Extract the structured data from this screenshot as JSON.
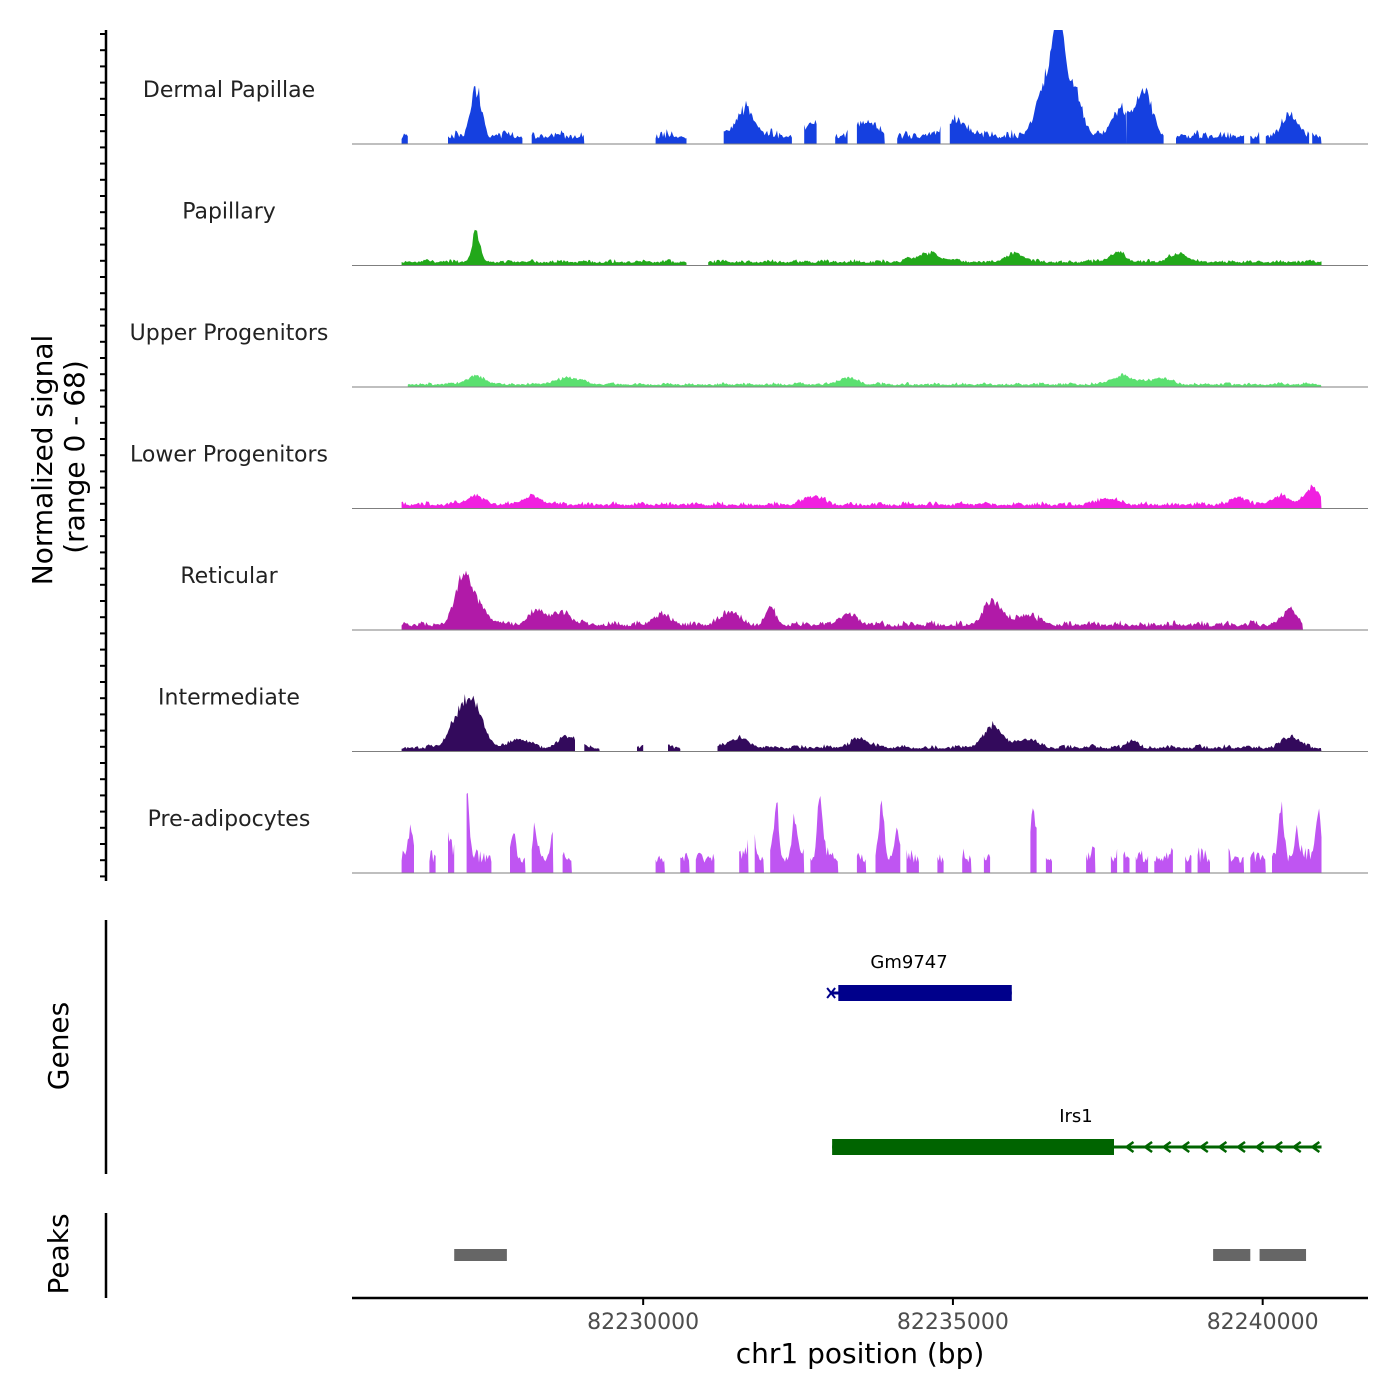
{
  "chart_data": {
    "type": "area",
    "title": "",
    "ylabel_line1": "Normalized signal",
    "ylabel_line2": "(range 0 - 68)",
    "xlabel": "chr1 position (bp)",
    "x_range": [
      82225300,
      82241700
    ],
    "y_range": [
      0,
      68
    ],
    "x_ticks": [
      82230000,
      82235000,
      82240000
    ],
    "x_tick_labels": [
      "82230000",
      "82235000",
      "82240000"
    ],
    "tracks": [
      {
        "name": "Dermal Papillae",
        "color": "#1540E0",
        "peaks": [
          [
            82227300,
            28,
            80
          ],
          [
            82236700,
            68,
            90
          ],
          [
            82236500,
            30,
            150
          ],
          [
            82236950,
            30,
            120
          ],
          [
            82231650,
            16,
            150
          ],
          [
            82237700,
            14,
            150
          ],
          [
            82238000,
            16,
            120
          ],
          [
            82238150,
            16,
            100
          ],
          [
            82240450,
            13,
            120
          ],
          [
            82235050,
            9,
            200
          ],
          [
            82232750,
            8,
            150
          ],
          [
            82233600,
            9,
            150
          ]
        ],
        "base": 3,
        "noise": 6,
        "segments": [
          [
            82226100,
            82226200
          ],
          [
            82226850,
            82228050
          ],
          [
            82228200,
            82229050
          ],
          [
            82230200,
            82230700
          ],
          [
            82231300,
            82232400
          ],
          [
            82232600,
            82232800
          ],
          [
            82233100,
            82233300
          ],
          [
            82233450,
            82233900
          ],
          [
            82234100,
            82234800
          ],
          [
            82234950,
            82237800
          ],
          [
            82237800,
            82238400
          ],
          [
            82238600,
            82239700
          ],
          [
            82239800,
            82239950
          ],
          [
            82240050,
            82240750
          ],
          [
            82240800,
            82240950
          ]
        ]
      },
      {
        "name": "Papillary",
        "color": "#22A81A",
        "peaks": [
          [
            82227300,
            18,
            60
          ],
          [
            82236000,
            5,
            150
          ],
          [
            82237650,
            6,
            120
          ],
          [
            82234600,
            5,
            200
          ],
          [
            82238650,
            5,
            150
          ]
        ],
        "base": 1.5,
        "noise": 2.5,
        "segments": [
          [
            82226100,
            82230700
          ],
          [
            82231050,
            82240950
          ]
        ]
      },
      {
        "name": "Upper Progenitors",
        "color": "#5BE070",
        "peaks": [
          [
            82227300,
            5,
            150
          ],
          [
            82228800,
            4,
            200
          ],
          [
            82233300,
            4,
            150
          ],
          [
            82237750,
            5,
            200
          ],
          [
            82238350,
            4,
            150
          ]
        ],
        "base": 1,
        "noise": 2,
        "segments": [
          [
            82226200,
            82240950
          ]
        ]
      },
      {
        "name": "Lower Progenitors",
        "color": "#F020E0",
        "peaks": [
          [
            82240800,
            10,
            120
          ],
          [
            82227300,
            5,
            150
          ],
          [
            82228200,
            5,
            150
          ],
          [
            82232750,
            5,
            150
          ],
          [
            82237500,
            4,
            150
          ],
          [
            82239600,
            5,
            120
          ],
          [
            82240300,
            5,
            150
          ]
        ],
        "base": 1.5,
        "noise": 3,
        "segments": [
          [
            82226100,
            82240950
          ]
        ]
      },
      {
        "name": "Reticular",
        "color": "#B11AA8",
        "peaks": [
          [
            82227100,
            22,
            120
          ],
          [
            82227250,
            12,
            200
          ],
          [
            82235650,
            14,
            150
          ],
          [
            82228300,
            8,
            150
          ],
          [
            82228700,
            7,
            150
          ],
          [
            82231400,
            8,
            150
          ],
          [
            82232050,
            10,
            80
          ],
          [
            82236200,
            6,
            150
          ],
          [
            82240450,
            10,
            100
          ],
          [
            82233300,
            6,
            150
          ],
          [
            82230300,
            6,
            150
          ]
        ],
        "base": 2,
        "noise": 4,
        "segments": [
          [
            82226100,
            82240650
          ]
        ]
      },
      {
        "name": "Intermediate",
        "color": "#330A5C",
        "peaks": [
          [
            82227100,
            22,
            180
          ],
          [
            82227300,
            14,
            150
          ],
          [
            82235650,
            13,
            150
          ],
          [
            82228800,
            7,
            150
          ],
          [
            82231550,
            6,
            150
          ],
          [
            82236200,
            5,
            150
          ],
          [
            82237900,
            5,
            80
          ],
          [
            82240450,
            7,
            120
          ],
          [
            82233500,
            5,
            150
          ],
          [
            82228000,
            5,
            150
          ]
        ],
        "base": 1.5,
        "noise": 3,
        "segments": [
          [
            82226100,
            82228900
          ],
          [
            82229050,
            82229300
          ],
          [
            82229900,
            82230000
          ],
          [
            82230400,
            82230600
          ],
          [
            82231200,
            82240950
          ]
        ]
      },
      {
        "name": "Pre-adipocytes",
        "color": "#BF55F2",
        "peaks": [
          [
            82226250,
            18,
            40
          ],
          [
            82226850,
            12,
            40
          ],
          [
            82227050,
            20,
            50
          ],
          [
            82227150,
            38,
            40
          ],
          [
            82227900,
            15,
            40
          ],
          [
            82228250,
            18,
            40
          ],
          [
            82228550,
            18,
            40
          ],
          [
            82231750,
            28,
            40
          ],
          [
            82232150,
            30,
            40
          ],
          [
            82232450,
            25,
            40
          ],
          [
            82232850,
            40,
            40
          ],
          [
            82233850,
            28,
            40
          ],
          [
            82234100,
            18,
            40
          ],
          [
            82236300,
            30,
            40
          ],
          [
            82237350,
            20,
            40
          ],
          [
            82240300,
            30,
            40
          ],
          [
            82240550,
            18,
            40
          ],
          [
            82240900,
            30,
            40
          ]
        ],
        "base": 6,
        "noise": 10,
        "segments": [
          [
            82226100,
            82226300
          ],
          [
            82226550,
            82226650
          ],
          [
            82226850,
            82226950
          ],
          [
            82227150,
            82227550
          ],
          [
            82227850,
            82228100
          ],
          [
            82228200,
            82228550
          ],
          [
            82228700,
            82228850
          ],
          [
            82230200,
            82230350
          ],
          [
            82230600,
            82230750
          ],
          [
            82230850,
            82231150
          ],
          [
            82231550,
            82231700
          ],
          [
            82231800,
            82231950
          ],
          [
            82232050,
            82232600
          ],
          [
            82232700,
            82233150
          ],
          [
            82233450,
            82233600
          ],
          [
            82233750,
            82234150
          ],
          [
            82234250,
            82234450
          ],
          [
            82234750,
            82234850
          ],
          [
            82235150,
            82235300
          ],
          [
            82235500,
            82235600
          ],
          [
            82236250,
            82236350
          ],
          [
            82236500,
            82236600
          ],
          [
            82237150,
            82237300
          ],
          [
            82237550,
            82237650
          ],
          [
            82237750,
            82237850
          ],
          [
            82237950,
            82238150
          ],
          [
            82238250,
            82238550
          ],
          [
            82238750,
            82238850
          ],
          [
            82238950,
            82239150
          ],
          [
            82239450,
            82239700
          ],
          [
            82239800,
            82240050
          ],
          [
            82240150,
            82240950
          ]
        ]
      }
    ],
    "genes": [
      {
        "name": "Gm9747",
        "start": 82233050,
        "end": 82235950,
        "thick_start": 82233150,
        "thick_end": 82235950,
        "color": "#00008B",
        "strand": "none"
      },
      {
        "name": "Irs1",
        "start": 82233050,
        "end": 82240950,
        "thick_start": 82233050,
        "thick_end": 82237600,
        "color": "#006400",
        "strand": "-"
      }
    ],
    "genes_label": "Genes",
    "peaks_label": "Peaks",
    "peak_regions": [
      [
        82226950,
        82227800
      ],
      [
        82239200,
        82239800
      ],
      [
        82239950,
        82240700
      ]
    ],
    "peak_color": "#666666"
  }
}
